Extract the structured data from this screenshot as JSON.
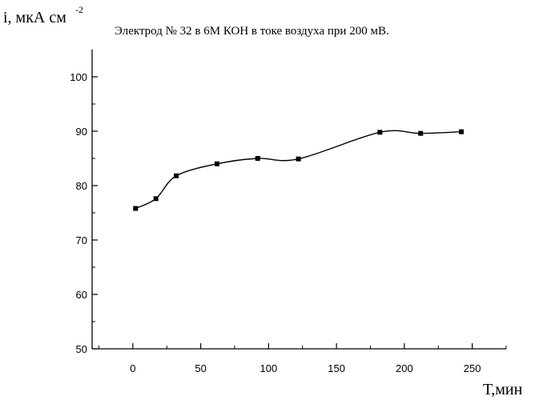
{
  "chart_data": {
    "type": "line",
    "title": "Электрод № 32 в 6М КОН в токе воздуха при 200 мВ.",
    "ylabel_main": "i, мкА см",
    "ylabel_sup": "-2",
    "xlabel": "Т,мин",
    "xlim": [
      -30,
      275
    ],
    "ylim": [
      50,
      105
    ],
    "xticks": [
      0,
      50,
      100,
      150,
      200,
      250
    ],
    "yticks": [
      50,
      60,
      70,
      80,
      90,
      100
    ],
    "grid": false,
    "series": [
      {
        "x": [
          2,
          17,
          32,
          62,
          92,
          122,
          182,
          212,
          242
        ],
        "y": [
          75.8,
          77.6,
          81.8,
          84.0,
          85.0,
          84.9,
          89.8,
          89.6,
          89.9
        ]
      }
    ],
    "colors": {
      "line": "#000000",
      "marker": "#000000",
      "axis": "#000000"
    }
  }
}
